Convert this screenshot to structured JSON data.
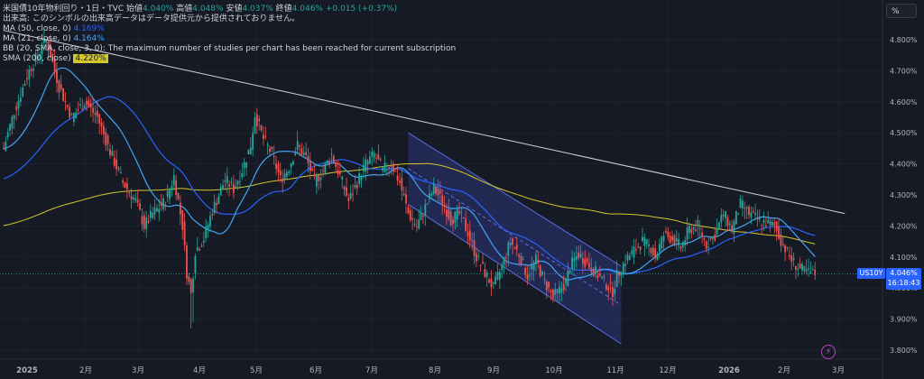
{
  "legend": {
    "line1_prefix": "米国債10年物利回り・1日・TVC",
    "open_label": "始値",
    "open": "4.040%",
    "high_label": "高値",
    "high": "4.048%",
    "low_label": "安値",
    "low": "4.037%",
    "close_label": "終値",
    "close": "4.046%",
    "change": "+0.015 (+0.37%)",
    "volume_note": "出来高: このシンボルの出来高データはデータ提供元から提供されておりません。",
    "ma50_label": "MA (50, close, 0)",
    "ma50_value": "4.169%",
    "ma21_label": "MA (21, close, 0)",
    "ma21_value": "4.164%",
    "bb_label": "BB (20, SMA, close, 3, 0): The maximum number of studies per chart has been reached for current subscription",
    "sma200_label": "SMA (200, close)",
    "sma200_value": "4.220%"
  },
  "axis": {
    "unit_button": "%",
    "symbol_tag": "US10Y",
    "last_price": "4.046%",
    "countdown": "16:18:43"
  },
  "colors": {
    "background": "#161a25",
    "up": "#26a69a",
    "down": "#ef5350",
    "ma50": "#2962ff",
    "ma21": "#42a5f5",
    "sma200": "#d4c72b",
    "trendline": "#d1d4dc",
    "channel_fill": "#2f3b8c",
    "channel_line": "#5b6ee1"
  },
  "chart_data": {
    "type": "candlestick",
    "y_unit": "%",
    "ylim": [
      3.78,
      4.88
    ],
    "yticks": [
      "4.800%",
      "4.700%",
      "4.600%",
      "4.500%",
      "4.400%",
      "4.300%",
      "4.200%",
      "4.100%",
      "4.000%",
      "3.900%",
      "3.800%"
    ],
    "x_tick_labels": [
      "2025",
      "2月",
      "3月",
      "4月",
      "5月",
      "6月",
      "7月",
      "8月",
      "9月",
      "10月",
      "11月",
      "12月",
      "2026",
      "2月",
      "3月"
    ],
    "sessions": 300,
    "close_path": [
      [
        0,
        4.45
      ],
      [
        5,
        4.57
      ],
      [
        12,
        4.7
      ],
      [
        16,
        4.75
      ],
      [
        20,
        4.8
      ],
      [
        26,
        4.65
      ],
      [
        32,
        4.55
      ],
      [
        38,
        4.6
      ],
      [
        44,
        4.55
      ],
      [
        50,
        4.44
      ],
      [
        56,
        4.34
      ],
      [
        62,
        4.28
      ],
      [
        66,
        4.2
      ],
      [
        70,
        4.24
      ],
      [
        76,
        4.28
      ],
      [
        80,
        4.36
      ],
      [
        84,
        4.2
      ],
      [
        86,
        4.05
      ],
      [
        88,
        3.98
      ],
      [
        90,
        4.12
      ],
      [
        94,
        4.16
      ],
      [
        98,
        4.25
      ],
      [
        104,
        4.35
      ],
      [
        108,
        4.32
      ],
      [
        112,
        4.38
      ],
      [
        116,
        4.46
      ],
      [
        118,
        4.56
      ],
      [
        122,
        4.48
      ],
      [
        126,
        4.43
      ],
      [
        130,
        4.35
      ],
      [
        134,
        4.39
      ],
      [
        138,
        4.46
      ],
      [
        142,
        4.42
      ],
      [
        146,
        4.34
      ],
      [
        150,
        4.38
      ],
      [
        154,
        4.43
      ],
      [
        158,
        4.36
      ],
      [
        162,
        4.28
      ],
      [
        166,
        4.34
      ],
      [
        170,
        4.4
      ],
      [
        174,
        4.43
      ],
      [
        178,
        4.38
      ],
      [
        182,
        4.4
      ],
      [
        186,
        4.34
      ],
      [
        190,
        4.24
      ],
      [
        194,
        4.2
      ],
      [
        198,
        4.26
      ],
      [
        202,
        4.32
      ],
      [
        206,
        4.28
      ],
      [
        210,
        4.22
      ],
      [
        214,
        4.24
      ],
      [
        218,
        4.18
      ],
      [
        222,
        4.1
      ],
      [
        226,
        4.05
      ],
      [
        230,
        4.0
      ],
      [
        234,
        4.07
      ],
      [
        238,
        4.15
      ],
      [
        242,
        4.11
      ],
      [
        246,
        4.04
      ],
      [
        250,
        4.09
      ],
      [
        254,
        4.02
      ],
      [
        258,
        3.97
      ],
      [
        262,
        4.0
      ],
      [
        264,
        4.02
      ],
      [
        266,
        4.07
      ],
      [
        270,
        4.11
      ],
      [
        274,
        4.08
      ],
      [
        278,
        4.05
      ],
      [
        282,
        4.02
      ],
      [
        286,
        3.99
      ],
      [
        288,
        4.04
      ],
      [
        292,
        4.09
      ],
      [
        296,
        4.12
      ],
      [
        300,
        4.15
      ],
      [
        304,
        4.13
      ],
      [
        306,
        4.1
      ],
      [
        310,
        4.17
      ],
      [
        314,
        4.16
      ],
      [
        318,
        4.13
      ],
      [
        322,
        4.19
      ],
      [
        326,
        4.2
      ],
      [
        330,
        4.14
      ],
      [
        334,
        4.17
      ],
      [
        338,
        4.24
      ],
      [
        342,
        4.19
      ],
      [
        346,
        4.27
      ],
      [
        350,
        4.24
      ],
      [
        354,
        4.22
      ],
      [
        358,
        4.21
      ],
      [
        362,
        4.2
      ],
      [
        366,
        4.14
      ],
      [
        370,
        4.09
      ],
      [
        374,
        4.06
      ],
      [
        378,
        4.05
      ],
      [
        381,
        4.046
      ]
    ],
    "channel": {
      "start": {
        "session": 190,
        "upper": 4.5,
        "lower": 4.27
      },
      "end": {
        "session": 290,
        "upper": 4.07,
        "lower": 3.82
      }
    },
    "trendline": {
      "start": {
        "session": 0,
        "value": 4.83
      },
      "end": {
        "session": 395,
        "value": 4.24
      }
    }
  }
}
